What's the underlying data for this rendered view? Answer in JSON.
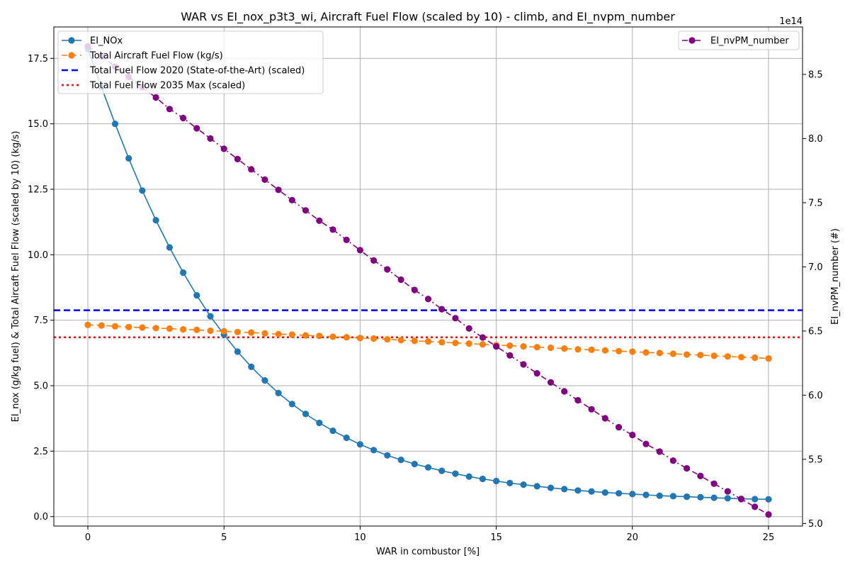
{
  "chart_data": {
    "type": "line",
    "title": "WAR vs EI_nox_p3t3_wi, Aircraft Fuel Flow (scaled by 10) - climb, and EI_nvpm_number",
    "xlabel": "WAR in combustor [%]",
    "ylabel_left": "EI_nox (g/kg fuel) & Total Aircaft Fuel Flow (scaled by 10) (kg/s)",
    "ylabel_right": "EI_nvPM_number (#)",
    "right_axis_multiplier": "1e14",
    "xlim": [
      -1.25,
      26.25
    ],
    "ylim_left": [
      -0.36,
      18.7
    ],
    "ylim_right": [
      498000000000000.0,
      887000000000000.0
    ],
    "grid": true,
    "xticks": [
      0,
      5,
      10,
      15,
      20,
      25
    ],
    "xtick_labels": [
      "0",
      "5",
      "10",
      "15",
      "20",
      "25"
    ],
    "yticks_left": [
      0,
      2.5,
      5,
      7.5,
      10,
      12.5,
      15,
      17.5
    ],
    "ytick_labels_left": [
      "0.0",
      "2.5",
      "5.0",
      "7.5",
      "10.0",
      "12.5",
      "15.0",
      "17.5"
    ],
    "yticks_right": [
      500000000000000.0,
      550000000000000.0,
      600000000000000.0,
      650000000000000.0,
      700000000000000.0,
      750000000000000.0,
      800000000000000.0,
      850000000000000.0
    ],
    "ytick_labels_right": [
      "5.0",
      "5.5",
      "6.0",
      "6.5",
      "7.0",
      "7.5",
      "8.0",
      "8.5"
    ],
    "legend_left_position": "upper-left",
    "legend_right_position": "upper-right",
    "x": [
      0,
      0.5,
      1,
      1.5,
      2,
      2.5,
      3,
      3.5,
      4,
      4.5,
      5,
      5.5,
      6,
      6.5,
      7,
      7.5,
      8,
      8.5,
      9,
      9.5,
      10,
      10.5,
      11,
      11.5,
      12,
      12.5,
      13,
      13.5,
      14,
      14.5,
      15,
      15.5,
      16,
      16.5,
      17,
      17.5,
      18,
      18.5,
      19,
      19.5,
      20,
      20.5,
      21,
      21.5,
      22,
      22.5,
      23,
      23.5,
      24,
      24.5,
      25
    ],
    "series": [
      {
        "name": "EI_NOx",
        "axis": "left",
        "color": "#1f77b4",
        "linestyle": "solid",
        "marker": "circle",
        "values": [
          17.85,
          16.4,
          15.0,
          13.68,
          12.45,
          11.32,
          10.28,
          9.32,
          8.45,
          7.65,
          6.95,
          6.3,
          5.72,
          5.2,
          4.72,
          4.3,
          3.92,
          3.58,
          3.28,
          3.01,
          2.76,
          2.54,
          2.34,
          2.17,
          2.01,
          1.88,
          1.75,
          1.64,
          1.53,
          1.44,
          1.36,
          1.28,
          1.22,
          1.16,
          1.1,
          1.05,
          1.0,
          0.96,
          0.92,
          0.89,
          0.86,
          0.83,
          0.8,
          0.78,
          0.76,
          0.74,
          0.72,
          0.7,
          0.68,
          0.67,
          0.66
        ]
      },
      {
        "name": "Total Aircraft Fuel Flow (kg/s)",
        "axis": "left",
        "color": "#ff7f0e",
        "linestyle": "dashed",
        "marker": "circle",
        "values": [
          7.32,
          7.3,
          7.27,
          7.24,
          7.22,
          7.2,
          7.18,
          7.15,
          7.13,
          7.1,
          7.08,
          7.05,
          7.03,
          7.0,
          6.97,
          6.95,
          6.92,
          6.9,
          6.87,
          6.85,
          6.82,
          6.8,
          6.77,
          6.74,
          6.71,
          6.69,
          6.66,
          6.63,
          6.61,
          6.58,
          6.55,
          6.53,
          6.5,
          6.47,
          6.45,
          6.42,
          6.39,
          6.37,
          6.35,
          6.32,
          6.3,
          6.27,
          6.25,
          6.22,
          6.19,
          6.17,
          6.14,
          6.12,
          6.09,
          6.07,
          6.04
        ]
      },
      {
        "name": "EI_nvPM_number",
        "axis": "right",
        "color": "#800080",
        "linestyle": "dashdot",
        "marker": "circle",
        "values": [
          872000000000000.0,
          864000000000000.0,
          856000000000000.0,
          848000000000000.0,
          840000000000000.0,
          832000000000000.0,
          823000000000000.0,
          816000000000000.0,
          808000000000000.0,
          800000000000000.0,
          792000000000000.0,
          784000000000000.0,
          776000000000000.0,
          768000000000000.0,
          760000000000000.0,
          752000000000000.0,
          744000000000000.0,
          736000000000000.0,
          729000000000000.0,
          721000000000000.0,
          713000000000000.0,
          705000000000000.0,
          698000000000000.0,
          690000000000000.0,
          682000000000000.0,
          675000000000000.0,
          667000000000000.0,
          660000000000000.0,
          652000000000000.0,
          645000000000000.0,
          638000000000000.0,
          631000000000000.0,
          624000000000000.0,
          617000000000000.0,
          610000000000000.0,
          603000000000000.0,
          596000000000000.0,
          589000000000000.0,
          582000000000000.0,
          575000000000000.0,
          569000000000000.0,
          562000000000000.0,
          556000000000000.0,
          549000000000000.0,
          543000000000000.0,
          537000000000000.0,
          531000000000000.0,
          525000000000000.0,
          519000000000000.0,
          513000000000000.0,
          507000000000000.0
        ]
      }
    ],
    "reference_lines": [
      {
        "name": "Total Fuel Flow 2020 (State-of-the-Art) (scaled)",
        "axis": "left",
        "y": 7.88,
        "color": "#0000ff",
        "linestyle": "dashed"
      },
      {
        "name": "Total Fuel Flow 2035 Max (scaled)",
        "axis": "left",
        "y": 6.85,
        "color": "#ff0000",
        "linestyle": "dotted"
      }
    ]
  }
}
